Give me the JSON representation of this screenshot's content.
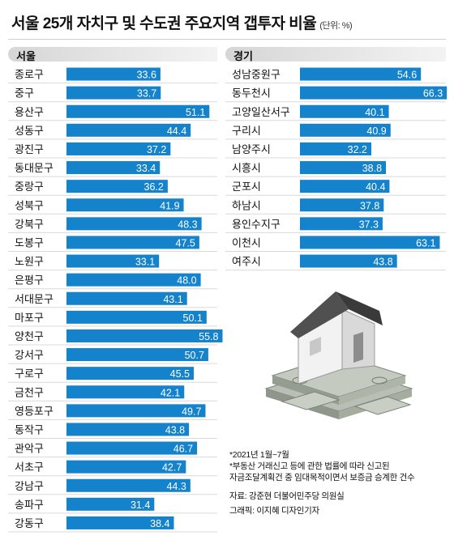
{
  "header": {
    "title": "서울 25개 자치구 및 수도권 주요지역 갭투자 비율",
    "unit": "(단위: %)"
  },
  "colors": {
    "bar": "#1582cc",
    "house_roof": "#4a4a4a",
    "house_wall": "#f2f2f2",
    "money": "#9aa399"
  },
  "chart_data": [
    {
      "type": "bar",
      "orientation": "horizontal",
      "title": "서울",
      "categories": [
        "종로구",
        "중구",
        "용산구",
        "성동구",
        "광진구",
        "동대문구",
        "중랑구",
        "성북구",
        "강북구",
        "도봉구",
        "노원구",
        "은평구",
        "서대문구",
        "마포구",
        "양천구",
        "강서구",
        "구로구",
        "금천구",
        "영등포구",
        "동작구",
        "관악구",
        "서초구",
        "강남구",
        "송파구",
        "강동구"
      ],
      "values": [
        33.6,
        33.7,
        51.1,
        44.4,
        37.2,
        33.4,
        36.2,
        41.9,
        48.3,
        47.5,
        33.1,
        48.0,
        43.1,
        50.1,
        55.8,
        50.7,
        45.5,
        42.1,
        49.7,
        43.8,
        46.7,
        42.7,
        44.3,
        31.4,
        38.4
      ],
      "value_labels": [
        "33.6",
        "33.7",
        "51.1",
        "44.4",
        "37.2",
        "33.4",
        "36.2",
        "41.9",
        "48.3",
        "47.5",
        "33.1",
        "48.0",
        "43.1",
        "50.1",
        "55.8",
        "50.7",
        "45.5",
        "42.1",
        "49.7",
        "43.8",
        "46.7",
        "42.7",
        "44.3",
        "31.4",
        "38.4"
      ],
      "xlim": [
        0,
        60
      ]
    },
    {
      "type": "bar",
      "orientation": "horizontal",
      "title": "경기",
      "categories": [
        "성남중원구",
        "동두천시",
        "고양일산서구",
        "구리시",
        "남양주시",
        "시흥시",
        "군포시",
        "하남시",
        "용인수지구",
        "이천시",
        "여주시"
      ],
      "values": [
        54.6,
        66.3,
        40.1,
        40.9,
        32.2,
        38.8,
        40.4,
        37.8,
        37.3,
        63.1,
        43.8
      ],
      "value_labels": [
        "54.6",
        "66.3",
        "40.1",
        "40.9",
        "32.2",
        "38.8",
        "40.4",
        "37.8",
        "37.3",
        "63.1",
        "43.8"
      ],
      "xlim": [
        0,
        70
      ]
    }
  ],
  "notes": [
    "*2021년 1월~7월",
    "*부동산 거래신고 등에 관한 법률에 따라 신고된",
    "자금조달계획건 중 임대목적이면서 보증금 승계한 건수"
  ],
  "credits": [
    "자료: 강준현 더불어민주당 의원실",
    "그래픽: 이지혜 디자인기자"
  ]
}
